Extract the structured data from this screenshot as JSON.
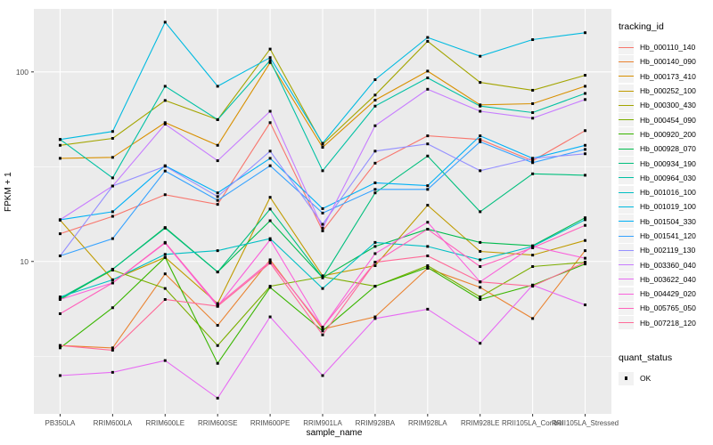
{
  "figure": {
    "xlabel": "sample_name",
    "ylabel": "FPKM + 1"
  },
  "colors": {
    "panel_bg": "#EBEBEB",
    "grid": "#FFFFFF",
    "tick": "#333333",
    "tick_text": "#4D4D4D",
    "marker": "#000000",
    "legend_key_bg": "#F2F2F2"
  },
  "chart_data": {
    "type": "line",
    "title": "",
    "xlabel": "sample_name",
    "ylabel": "FPKM + 1",
    "y_scale": "log10",
    "ylim": [
      1.57,
      215
    ],
    "y_ticks": [
      {
        "label": "100",
        "value": 100
      },
      {
        "label": "10",
        "value": 10
      }
    ],
    "y_minor_gridlines": [
      31.62,
      3.162
    ],
    "grid": true,
    "legend_position": "right",
    "legend_title": "tracking_id",
    "legend2": {
      "title": "quant_status",
      "items": [
        {
          "label": "OK",
          "marker": "black-square"
        }
      ]
    },
    "point_marker": "filled-square",
    "x_categories": [
      "PB350LA",
      "RRIM600LA",
      "RRIM600LE",
      "RRIM600SE",
      "RRIM600PE",
      "RRIM901LA",
      "RRIM928BA",
      "RRIM928LA",
      "RRIM928LE",
      "RRII105LA_Control",
      "RRII105LA_Stressed"
    ],
    "series": [
      {
        "name": "Hb_000110_140",
        "color": "#F8766D",
        "values": [
          14,
          17.3,
          22.5,
          20,
          54,
          14.5,
          33,
          46,
          44,
          34,
          49
        ]
      },
      {
        "name": "Hb_000140_090",
        "color": "#EA8331",
        "values": [
          3.6,
          3.5,
          8.6,
          4.6,
          10.2,
          4.4,
          5.1,
          9.2,
          7.3,
          5.0,
          11.4
        ]
      },
      {
        "name": "Hb_000173_410",
        "color": "#D89000",
        "values": [
          35,
          35.4,
          54,
          41,
          112,
          40,
          71,
          101,
          67,
          68,
          84
        ]
      },
      {
        "name": "Hb_000252_100",
        "color": "#C09B00",
        "values": [
          16.5,
          8.0,
          10.5,
          6.0,
          21.8,
          8.4,
          9.5,
          19.8,
          11.3,
          10.8,
          12.9
        ]
      },
      {
        "name": "Hb_000300_430",
        "color": "#A3A500",
        "values": [
          41,
          44.6,
          70.7,
          56,
          132,
          41.5,
          75.5,
          145,
          88,
          80,
          96
        ]
      },
      {
        "name": "Hb_000454_090",
        "color": "#7CAE00",
        "values": [
          6.4,
          9.0,
          7.2,
          3.6,
          7.4,
          8.3,
          7.4,
          9.5,
          6.5,
          9.4,
          9.9
        ]
      },
      {
        "name": "Hb_000920_200",
        "color": "#39B600",
        "values": [
          3.5,
          5.7,
          10.5,
          2.9,
          7.3,
          4.3,
          7.4,
          9.3,
          6.3,
          7.5,
          9.7
        ]
      },
      {
        "name": "Hb_000928_070",
        "color": "#00BB4E",
        "values": [
          6.3,
          9.1,
          15.1,
          8.8,
          16.4,
          8.2,
          12.0,
          14.8,
          12.6,
          12.1,
          17.0
        ]
      },
      {
        "name": "Hb_000934_190",
        "color": "#00BF7D",
        "values": [
          6.4,
          9.1,
          15.0,
          8.8,
          18.9,
          8.2,
          23,
          36,
          18.3,
          29,
          28.5
        ]
      },
      {
        "name": "Hb_000964_030",
        "color": "#00C1A3",
        "values": [
          44,
          27.6,
          84,
          56,
          115,
          30.1,
          66,
          93,
          66,
          61,
          77
        ]
      },
      {
        "name": "Hb_001016_100",
        "color": "#00BFC4",
        "values": [
          6.5,
          8.0,
          10.9,
          11.4,
          13.2,
          7.2,
          12.6,
          12.0,
          10.2,
          12.0,
          16.6
        ]
      },
      {
        "name": "Hb_001019_100",
        "color": "#00BAE0",
        "values": [
          44,
          48.5,
          183,
          84,
          119,
          42,
          91,
          152,
          121,
          148,
          161
        ]
      },
      {
        "name": "Hb_001504_330",
        "color": "#00B0F6",
        "values": [
          16.6,
          18.3,
          32,
          23,
          35,
          19,
          26,
          25.1,
          46,
          35,
          41
        ]
      },
      {
        "name": "Hb_001541_120",
        "color": "#35A2FF",
        "values": [
          10.7,
          13.2,
          30,
          21,
          32,
          18,
          24,
          24,
          42.8,
          33.2,
          39
        ]
      },
      {
        "name": "Hb_002119_130",
        "color": "#9590FF",
        "values": [
          10.7,
          25,
          31.8,
          22,
          38.2,
          15.7,
          38.2,
          41.7,
          30.1,
          35,
          37
        ]
      },
      {
        "name": "Hb_003360_040",
        "color": "#C77CFF",
        "values": [
          16.6,
          25,
          53,
          34,
          62,
          15,
          52,
          81,
          62,
          57,
          71.5
        ]
      },
      {
        "name": "Hb_003622_040",
        "color": "#E76BF3",
        "values": [
          2.5,
          2.6,
          3.0,
          1.9,
          5.1,
          2.5,
          5.0,
          5.6,
          3.7,
          7.5,
          5.9
        ]
      },
      {
        "name": "Hb_004429_020",
        "color": "#FA62DB",
        "values": [
          6.3,
          7.7,
          12.5,
          5.8,
          13.0,
          4.5,
          11.0,
          16.1,
          7.8,
          12.0,
          10.4
        ]
      },
      {
        "name": "Hb_005765_050",
        "color": "#FF62BC",
        "values": [
          5.3,
          7.7,
          12.6,
          5.9,
          10.0,
          4.5,
          9.9,
          14.8,
          9.4,
          11.8,
          15.5
        ]
      },
      {
        "name": "Hb_007218_120",
        "color": "#FF6A98",
        "values": [
          3.6,
          3.4,
          6.3,
          5.8,
          9.8,
          4.1,
          9.9,
          10.7,
          7.8,
          7.4,
          9.9
        ]
      }
    ]
  }
}
